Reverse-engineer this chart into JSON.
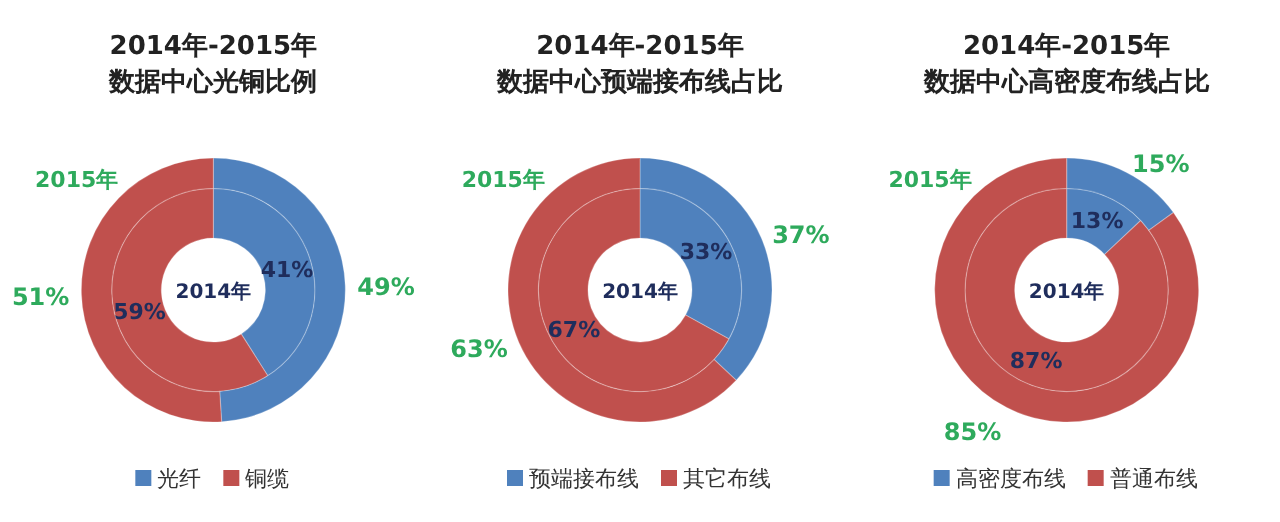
{
  "chart_data": [
    {
      "type": "donut",
      "title": "2014年-2015年",
      "subtitle": "数据中心光铜比例",
      "categories": [
        "光纤",
        "铜缆"
      ],
      "colors": [
        "#4f81bd",
        "#c0504d"
      ],
      "legend": "bottom",
      "series": [
        {
          "name": "2014年",
          "values": [
            41,
            59
          ],
          "value_labels": [
            "41%",
            "59%"
          ]
        },
        {
          "name": "2015年",
          "values": [
            49,
            51
          ],
          "value_labels": [
            "49%",
            "51%"
          ]
        }
      ]
    },
    {
      "type": "donut",
      "title": "2014年-2015年",
      "subtitle": "数据中心预端接布线占比",
      "categories": [
        "预端接布线",
        "其它布线"
      ],
      "colors": [
        "#4f81bd",
        "#c0504d"
      ],
      "legend": "bottom",
      "series": [
        {
          "name": "2014年",
          "values": [
            33,
            67
          ],
          "value_labels": [
            "33%",
            "67%"
          ]
        },
        {
          "name": "2015年",
          "values": [
            37,
            63
          ],
          "value_labels": [
            "37%",
            "63%"
          ]
        }
      ]
    },
    {
      "type": "donut",
      "title": "2014年-2015年",
      "subtitle": "数据中心高密度布线占比",
      "categories": [
        "高密度布线",
        "普通布线"
      ],
      "colors": [
        "#4f81bd",
        "#c0504d"
      ],
      "legend": "bottom",
      "series": [
        {
          "name": "2014年",
          "values": [
            13,
            87
          ],
          "value_labels": [
            "13%",
            "87%"
          ]
        },
        {
          "name": "2015年",
          "values": [
            15,
            85
          ],
          "value_labels": [
            "15%",
            "85%"
          ]
        }
      ]
    }
  ]
}
